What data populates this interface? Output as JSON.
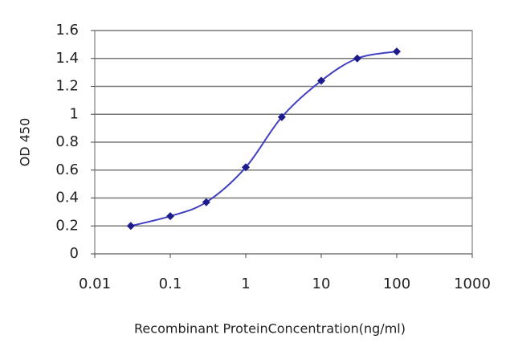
{
  "chart_data": {
    "type": "line",
    "x_label": "Recombinant ProteinConcentration(ng/ml)",
    "y_label": "OD 450",
    "x": [
      0.03,
      0.1,
      0.3,
      1,
      3,
      10,
      30,
      100
    ],
    "series": [
      {
        "color": "#1c1c8c",
        "values": [
          0.2,
          0.27,
          0.37,
          0.62,
          0.98,
          1.24,
          1.4,
          1.45
        ]
      }
    ],
    "xlog": true,
    "xlim": [
      0.01,
      1000
    ],
    "xticks": [
      0.01,
      0.1,
      1,
      10,
      100,
      1000
    ],
    "ylim": [
      0,
      1.6
    ],
    "yticks": [
      0,
      0.2,
      0.4,
      0.6,
      0.8,
      1,
      1.2,
      1.4,
      1.6
    ],
    "grid": true
  }
}
